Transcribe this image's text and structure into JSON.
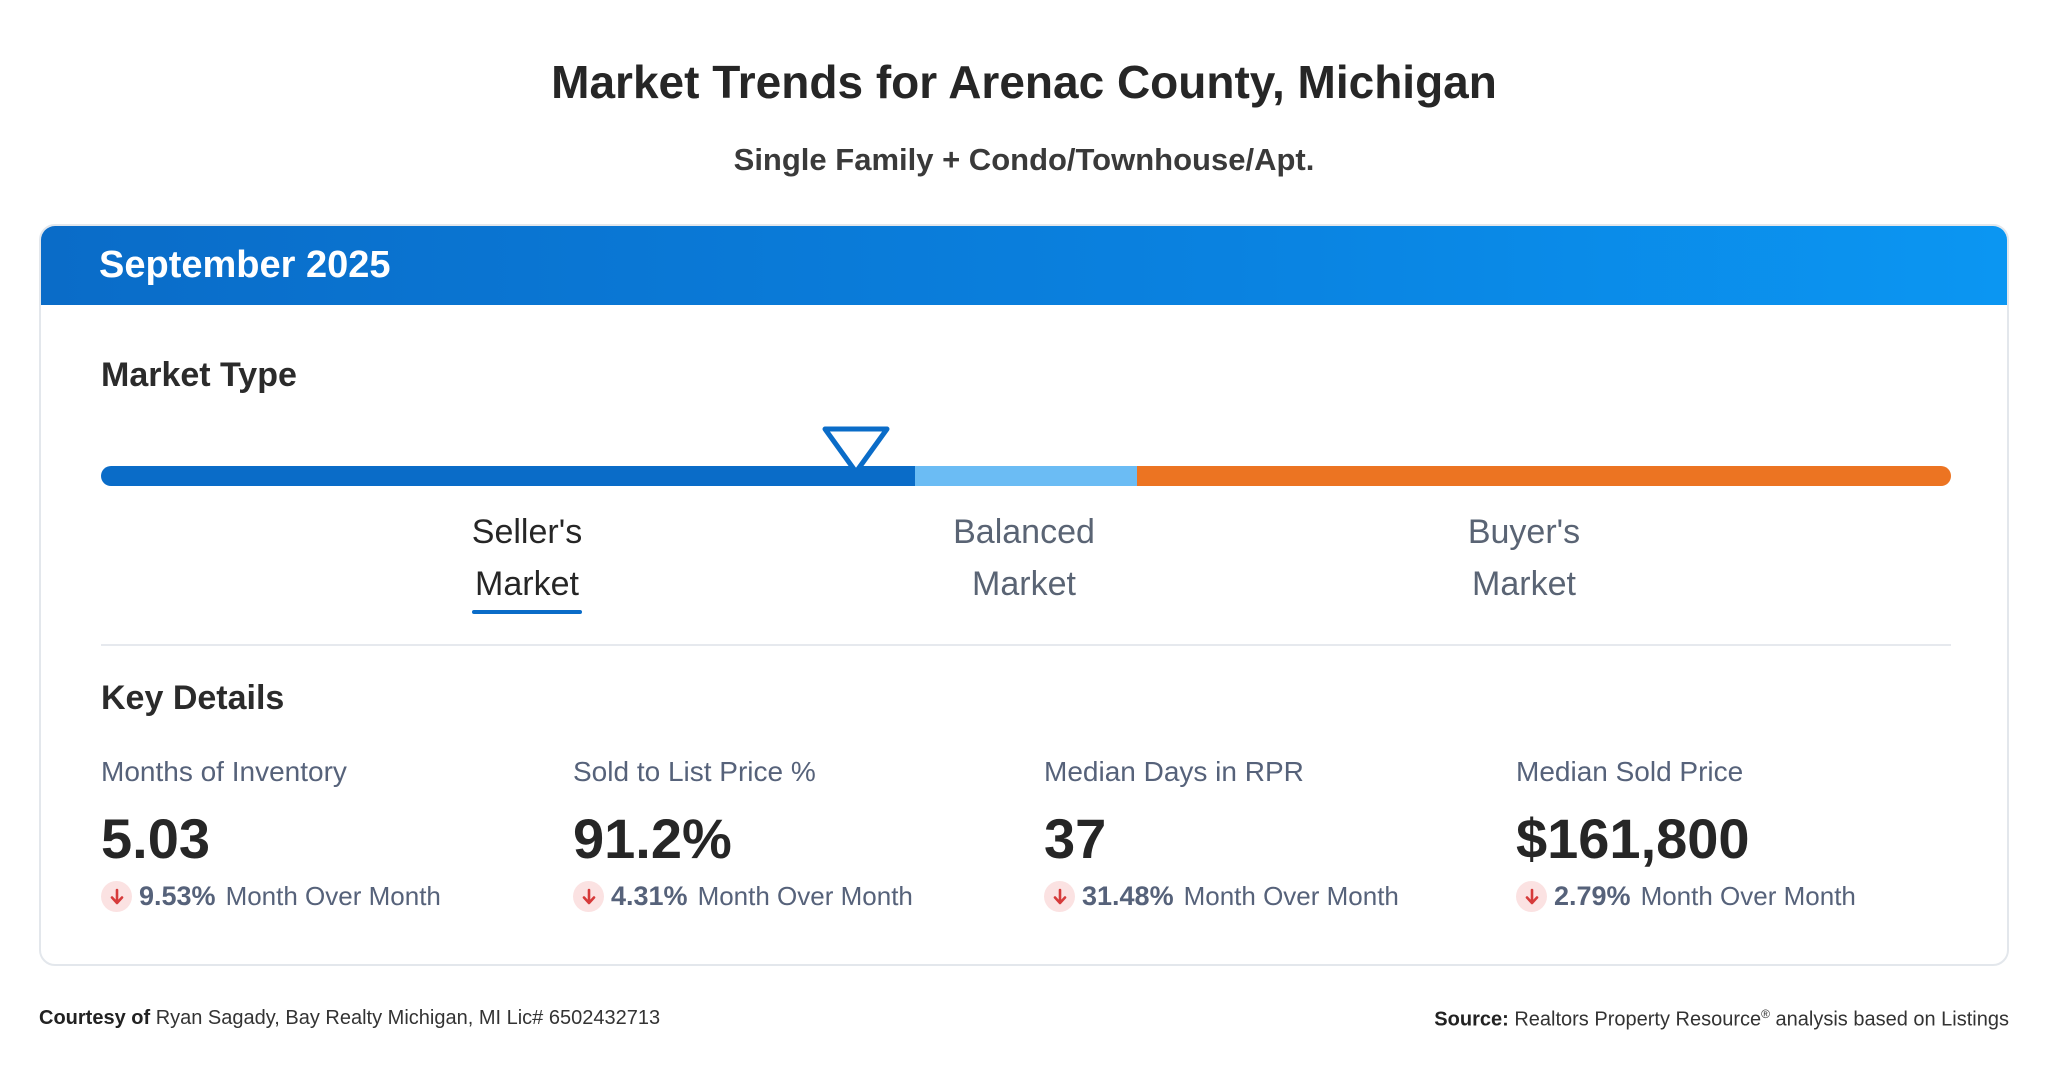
{
  "title": "Market Trends for Arenac County, Michigan",
  "subtitle": "Single Family + Condo/Townhouse/Apt.",
  "card": {
    "period": "September 2025",
    "market_type": {
      "heading": "Market Type",
      "labels": {
        "seller_line1": "Seller's",
        "seller_line2": "Market",
        "balanced_line1": "Balanced",
        "balanced_line2": "Market",
        "buyer_line1": "Buyer's",
        "buyer_line2": "Market"
      },
      "selected": "Seller's Market",
      "indicator_fraction": 0.42,
      "colors": {
        "seller": "#0a6cc8",
        "balanced": "#6bbcf4",
        "buyer": "#ec7422"
      }
    },
    "key_details": {
      "heading": "Key Details",
      "metrics": [
        {
          "label": "Months of Inventory",
          "value": "5.03",
          "change": "9.53%",
          "change_text": "Month Over Month",
          "direction": "down"
        },
        {
          "label": "Sold to List Price %",
          "value": "91.2%",
          "change": "4.31%",
          "change_text": "Month Over Month",
          "direction": "down"
        },
        {
          "label": "Median Days in RPR",
          "value": "37",
          "change": "31.48%",
          "change_text": "Month Over Month",
          "direction": "down"
        },
        {
          "label": "Median Sold Price",
          "value": "$161,800",
          "change": "2.79%",
          "change_text": "Month Over Month",
          "direction": "down"
        }
      ]
    }
  },
  "footer": {
    "courtesy_label": "Courtesy of",
    "courtesy_text": "Ryan Sagady, Bay Realty Michigan, MI Lic# 6502432713",
    "source_label": "Source:",
    "source_text": "Realtors Property Resource",
    "source_mark": "®",
    "source_suffix": "analysis based on Listings"
  }
}
